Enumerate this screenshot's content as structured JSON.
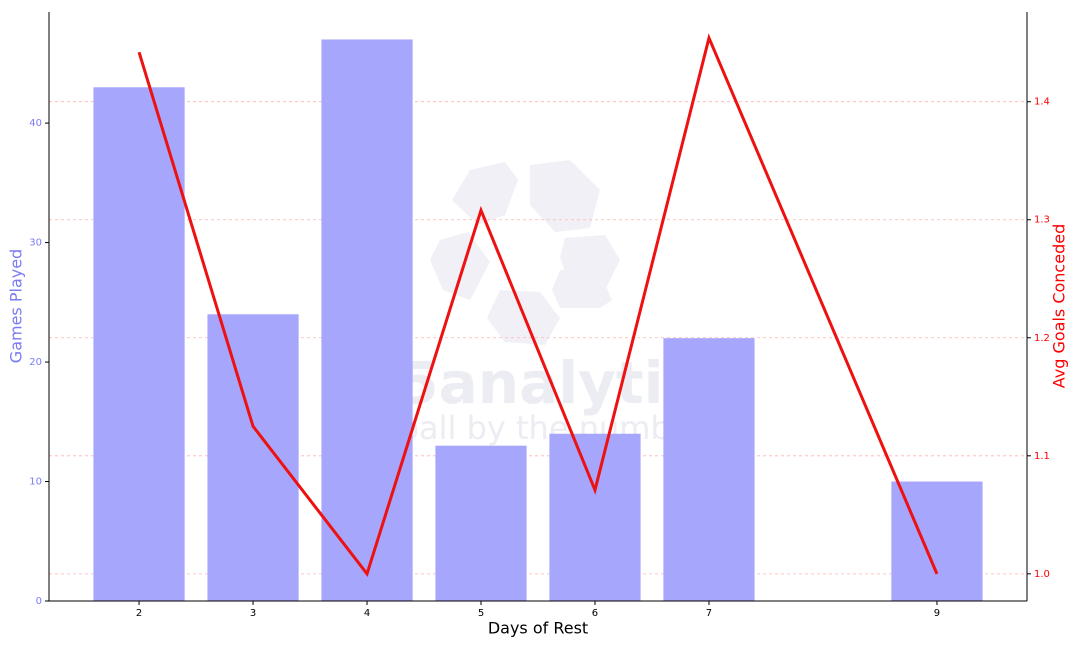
{
  "chart_data": {
    "type": "combo",
    "x": [
      2,
      3,
      4,
      5,
      6,
      7,
      9
    ],
    "xlim": [
      1.21,
      9.79
    ],
    "xticks": [
      2,
      3,
      4,
      5,
      6,
      7,
      9
    ],
    "xlabel": "Days of Rest",
    "ylabel": "Games Played",
    "y2label": "Avg Goals Conceded",
    "ylim": [
      0,
      49.3
    ],
    "yticks": [
      0,
      10,
      20,
      30,
      40
    ],
    "y2lim": [
      0.977,
      1.476
    ],
    "y2ticks": [
      {
        "value": 1,
        "label": "1.0"
      },
      1.1,
      1.2,
      1.3,
      1.4
    ],
    "grid": "y2",
    "ycolor": "#7b7bf5",
    "y2color": "#ff0000",
    "series": [
      {
        "type": "bar",
        "color": "#a6a6fd",
        "values": [
          43,
          24,
          47,
          13,
          14,
          22,
          10
        ]
      },
      {
        "type": "line",
        "axis": "y2",
        "color": "#ee1111",
        "values": [
          1.442,
          1.125,
          1.0,
          1.308,
          1.071,
          1.454,
          1.0
        ]
      }
    ],
    "watermark": {
      "title": "105analytics",
      "subtitle": "Football by the numbers"
    }
  }
}
